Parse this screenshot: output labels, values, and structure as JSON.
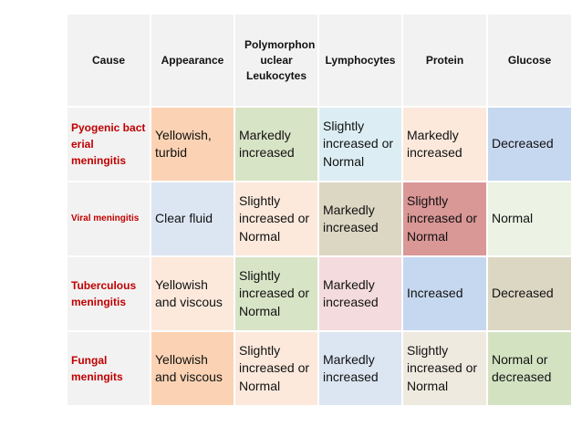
{
  "columns": [
    "Cause",
    "Appearance",
    "Polymorphon uclear Leukocytes",
    "Lymphocytes",
    "Protein",
    "Glucose"
  ],
  "rows": [
    {
      "cause": "Pyogenic bact erial meningitis",
      "appearance": "Yellowish, turbid",
      "pmn": "Markedly increased",
      "lymphocytes": "Slightly increased or Normal",
      "protein": "Markedly increased",
      "glucose": "Decreased"
    },
    {
      "cause": "Viral meningitis",
      "appearance": "Clear fluid",
      "pmn": "Slightly increased or Normal",
      "lymphocytes": "Markedly increased",
      "protein": "Slightly increased or Normal",
      "glucose": "Normal"
    },
    {
      "cause": "Tuberculous meningitis",
      "appearance": "Yellowish and viscous",
      "pmn": "Slightly increased or Normal",
      "lymphocytes": "Markedly increased",
      "protein": "Increased",
      "glucose": "Decreased"
    },
    {
      "cause": "Fungal meningits",
      "appearance": "Yellowish and viscous",
      "pmn": "Slightly increased or Normal",
      "lymphocytes": "Markedly increased",
      "protein": "Slightly increased or Normal",
      "glucose": "Normal or decreased"
    }
  ],
  "cell_colors": [
    [
      "#fbd3b4",
      "#d8e4c6",
      "#dceef4",
      "#fce9dc",
      "#c6d8f0"
    ],
    [
      "#dce6f2",
      "#fce9dc",
      "#dcd7c3",
      "#d99796",
      "#ecf2e4"
    ],
    [
      "#fce9dc",
      "#d8e4c6",
      "#f4dbdd",
      "#c6d8f0",
      "#dcd7c3"
    ],
    [
      "#fbd3b4",
      "#fce9dc",
      "#dce6f2",
      "#eeeae0",
      "#d3e3c2"
    ]
  ]
}
